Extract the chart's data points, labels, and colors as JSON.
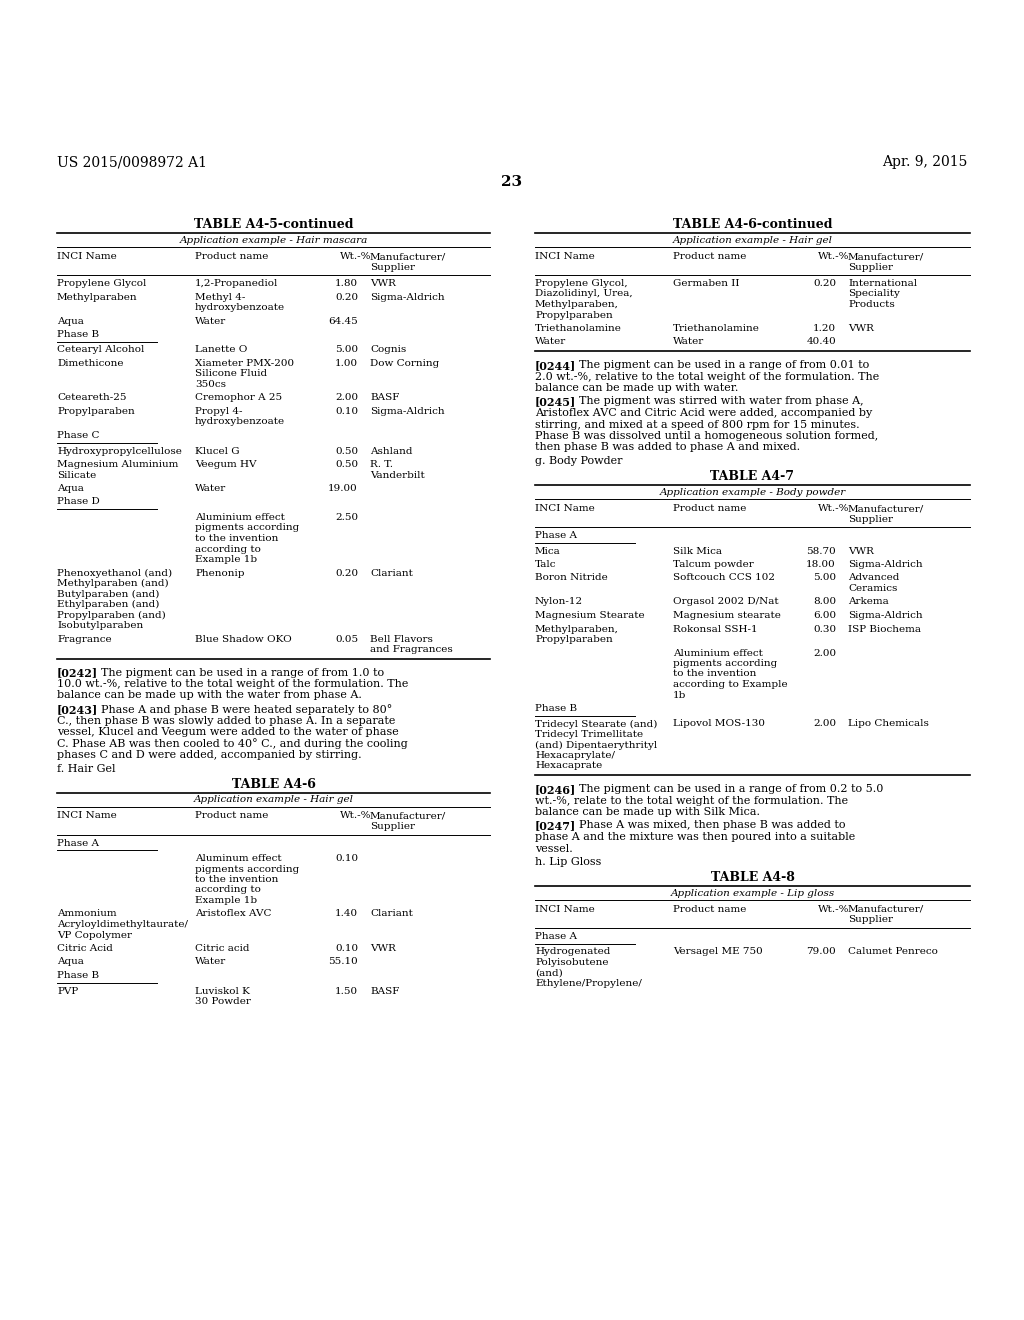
{
  "bg_color": "#ffffff",
  "text_color": "#000000",
  "page_header_left": "US 2015/0098972 A1",
  "page_header_right": "Apr. 9, 2015",
  "page_number": "23"
}
